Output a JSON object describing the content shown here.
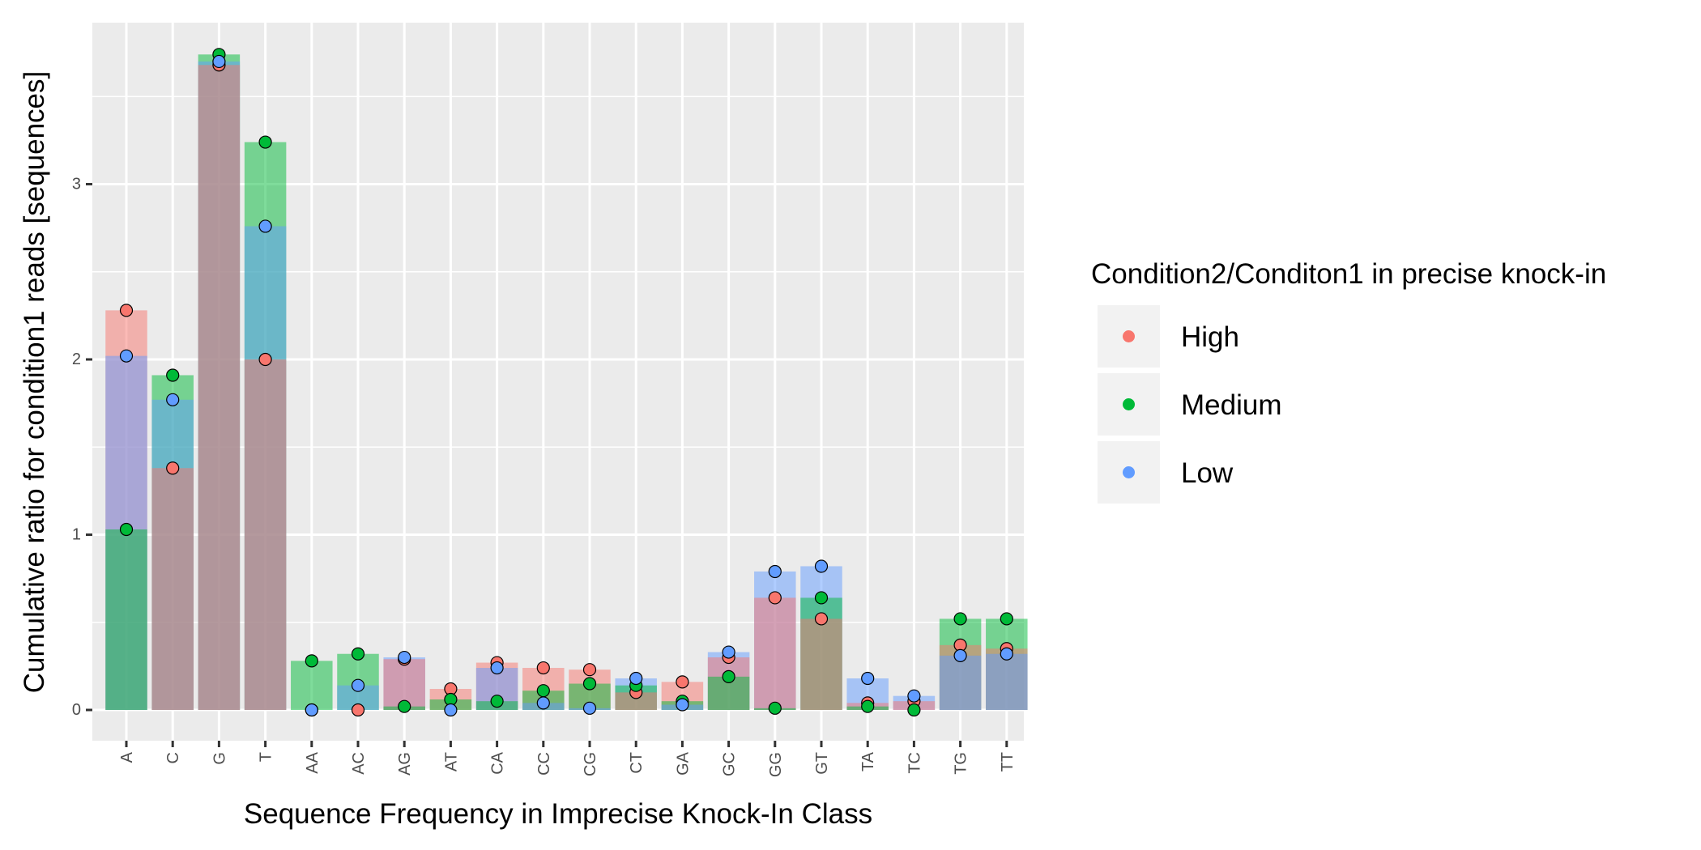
{
  "chart_data": {
    "type": "bar",
    "title": "",
    "xlabel": "Sequence Frequency in Imprecise Knock-In Class",
    "ylabel": "Cumulative ratio for condition1 reads [sequences]",
    "ylim": [
      -0.18,
      3.9
    ],
    "yticks": [
      0,
      1,
      2,
      3
    ],
    "ytick_labels": [
      "0",
      "1",
      "2",
      "3"
    ],
    "grid": true,
    "legend_position": "right",
    "legend_title": "Condition2/Conditon1 in precise knock-in",
    "categories": [
      "A",
      "C",
      "G",
      "T",
      "AA",
      "AC",
      "AG",
      "AT",
      "CA",
      "CC",
      "CG",
      "CT",
      "GA",
      "GC",
      "GG",
      "GT",
      "TA",
      "TC",
      "TG",
      "TT"
    ],
    "series": [
      {
        "name": "High",
        "color": "#F8766D",
        "values": [
          2.28,
          1.38,
          3.68,
          2.0,
          0.0,
          0.0,
          0.29,
          0.12,
          0.27,
          0.24,
          0.23,
          0.1,
          0.16,
          0.3,
          0.64,
          0.52,
          0.04,
          0.05,
          0.37,
          0.35
        ]
      },
      {
        "name": "Medium",
        "color": "#00BA38",
        "values": [
          1.03,
          1.91,
          3.74,
          3.24,
          0.28,
          0.32,
          0.02,
          0.06,
          0.05,
          0.11,
          0.15,
          0.14,
          0.05,
          0.19,
          0.01,
          0.64,
          0.02,
          0.0,
          0.52,
          0.52
        ]
      },
      {
        "name": "Low",
        "color": "#619CFF",
        "values": [
          2.02,
          1.77,
          3.7,
          2.76,
          0.0,
          0.14,
          0.3,
          0.0,
          0.24,
          0.04,
          0.01,
          0.18,
          0.03,
          0.33,
          0.79,
          0.82,
          0.18,
          0.08,
          0.31,
          0.32
        ]
      }
    ]
  }
}
